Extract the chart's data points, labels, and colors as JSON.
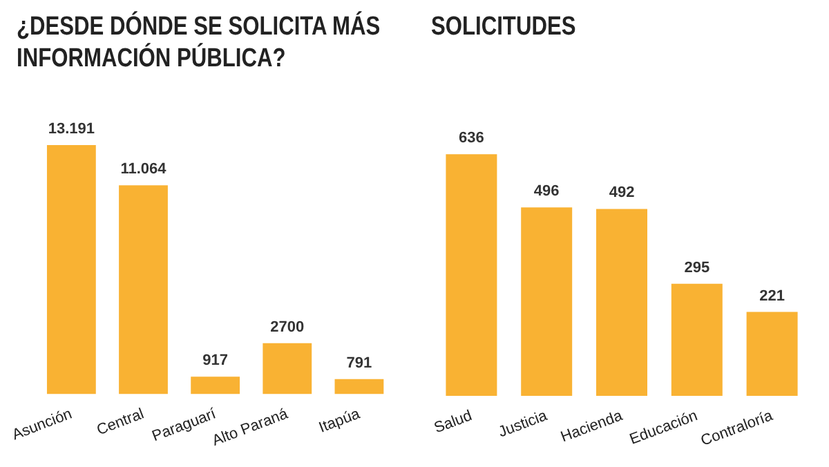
{
  "chart_data": [
    {
      "type": "bar",
      "title": "¿DESDE DÓNDE SE SOLICITA MÁS INFORMACIÓN PÚBLICA?",
      "categories": [
        "Asunción",
        "Central",
        "Paraguarí",
        "Alto Paraná",
        "Itapúa"
      ],
      "values": [
        13191,
        11064,
        917,
        2700,
        791
      ],
      "value_labels": [
        "13.191",
        "11.064",
        "917",
        "2700",
        "791"
      ],
      "color": "#f9b233",
      "grid": false,
      "legend": false
    },
    {
      "type": "bar",
      "title": "SOLICITUDES",
      "categories": [
        "Salud",
        "Justicia",
        "Hacienda",
        "Educación",
        "Contraloría"
      ],
      "values": [
        636,
        496,
        492,
        295,
        221
      ],
      "data_labels": true,
      "color": "#f9b233",
      "grid": false,
      "legend": false
    }
  ]
}
